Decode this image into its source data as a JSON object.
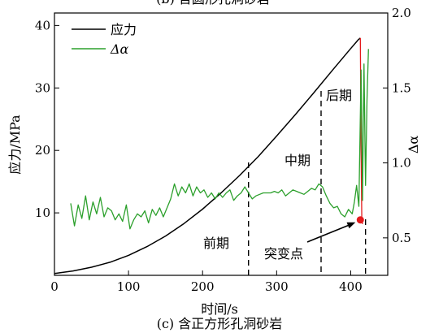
{
  "figure": {
    "caption_top": "(b) 含圆形孔洞砂岩",
    "caption_bottom": "(c) 含正方形孔洞砂岩"
  },
  "chart_data": {
    "type": "line",
    "xlabel": "时间/s",
    "ylabel_left": "应力/MPa",
    "ylabel_right": "Δα",
    "xlim": [
      0,
      450
    ],
    "ylim_left": [
      0,
      42
    ],
    "ylim_right": [
      0.25,
      2.0
    ],
    "xticks": [
      0,
      100,
      200,
      300,
      400
    ],
    "yticks_left": [
      10,
      20,
      30,
      40
    ],
    "yticks_right": [
      0.5,
      1.0,
      1.5,
      2.0
    ],
    "ytick_labels_right": [
      "0.5",
      "1.0",
      "1.5",
      "2.0"
    ],
    "grid": false,
    "legend": {
      "position": "top-left",
      "entries": [
        {
          "label": "应力",
          "color": "#000000"
        },
        {
          "label": "Δα",
          "color": "#2ca02c"
        }
      ]
    },
    "series": [
      {
        "name": "应力",
        "axis": "left",
        "color": "#000000",
        "x": [
          0,
          25,
          50,
          75,
          100,
          125,
          150,
          175,
          200,
          225,
          250,
          275,
          300,
          325,
          350,
          375,
          400,
          410,
          413
        ],
        "y": [
          0.3,
          0.7,
          1.3,
          2.1,
          3.2,
          4.6,
          6.3,
          8.3,
          10.6,
          13.2,
          16.0,
          19.0,
          22.3,
          25.7,
          29.2,
          32.8,
          36.3,
          37.7,
          38.0
        ]
      },
      {
        "name": "应力 (failure drop)",
        "axis": "left",
        "color": "#e41a1c",
        "x": [
          413,
          414,
          415,
          416
        ],
        "y": [
          38.0,
          20.0,
          9.0,
          8.2
        ]
      },
      {
        "name": "Δα",
        "axis": "right",
        "color": "#2ca02c",
        "x": [
          22,
          27,
          32,
          37,
          42,
          47,
          52,
          57,
          62,
          67,
          72,
          77,
          82,
          87,
          92,
          97,
          102,
          107,
          112,
          117,
          122,
          127,
          132,
          137,
          142,
          147,
          152,
          157,
          162,
          167,
          172,
          177,
          182,
          187,
          192,
          197,
          202,
          207,
          212,
          217,
          222,
          227,
          232,
          237,
          242,
          247,
          252,
          257,
          262,
          267,
          272,
          277,
          282,
          287,
          292,
          297,
          302,
          307,
          312,
          317,
          322,
          327,
          332,
          337,
          342,
          347,
          352,
          357,
          362,
          367,
          372,
          377,
          382,
          387,
          392,
          397,
          402,
          405,
          408,
          411,
          414,
          416,
          418,
          420,
          422,
          424
        ],
        "y": [
          0.73,
          0.58,
          0.72,
          0.63,
          0.78,
          0.62,
          0.74,
          0.66,
          0.77,
          0.64,
          0.7,
          0.68,
          0.62,
          0.66,
          0.61,
          0.72,
          0.56,
          0.62,
          0.66,
          0.64,
          0.68,
          0.6,
          0.69,
          0.65,
          0.7,
          0.64,
          0.7,
          0.76,
          0.86,
          0.78,
          0.84,
          0.8,
          0.86,
          0.78,
          0.84,
          0.8,
          0.82,
          0.77,
          0.8,
          0.76,
          0.8,
          0.77,
          0.8,
          0.82,
          0.75,
          0.78,
          0.8,
          0.84,
          0.8,
          0.76,
          0.78,
          0.79,
          0.8,
          0.8,
          0.8,
          0.81,
          0.8,
          0.82,
          0.78,
          0.8,
          0.82,
          0.81,
          0.8,
          0.79,
          0.81,
          0.83,
          0.82,
          0.86,
          0.84,
          0.78,
          0.73,
          0.7,
          0.71,
          0.66,
          0.64,
          0.69,
          0.66,
          0.74,
          0.85,
          0.71,
          1.62,
          0.75,
          1.66,
          0.85,
          1.42,
          1.76
        ]
      }
    ],
    "annotations": [
      {
        "text": "前期",
        "type": "phase"
      },
      {
        "text": "中期",
        "type": "phase"
      },
      {
        "text": "后期",
        "type": "phase"
      },
      {
        "text": "突变点",
        "type": "callout",
        "x": 413,
        "y_right": 0.62
      }
    ],
    "dividers_x": [
      262,
      360,
      420
    ]
  }
}
